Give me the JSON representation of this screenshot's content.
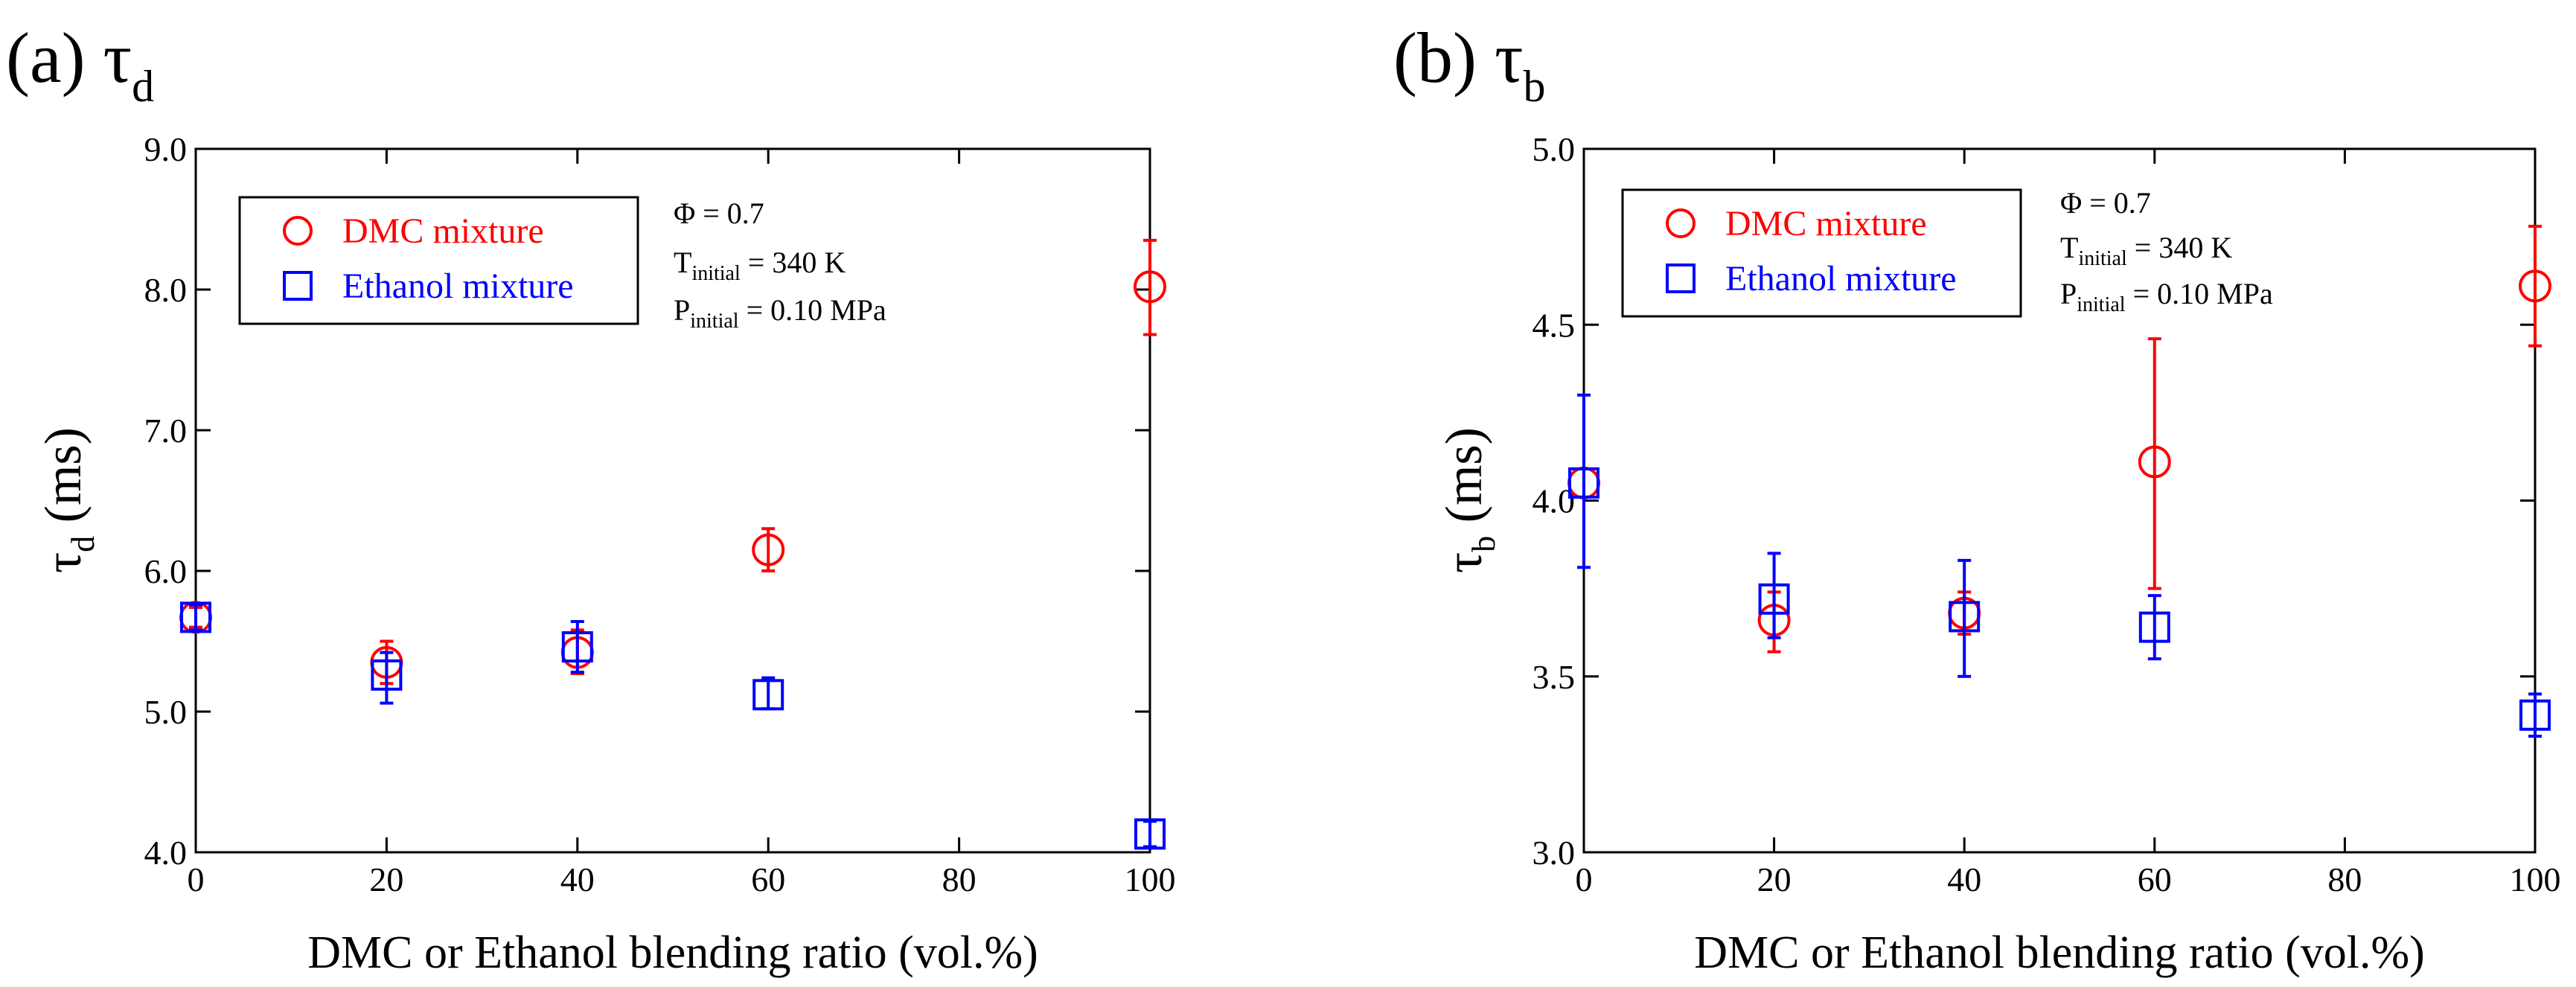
{
  "chart_data": [
    {
      "type": "scatter",
      "panel": "(a)",
      "title": "τ",
      "title_sub": "d",
      "ylabel": "τ",
      "ylabel_sub": "d",
      "ylabel_unit": "(ms)",
      "xlabel": "DMC or Ethanol blending ratio (vol.%)",
      "xlim": [
        0,
        100
      ],
      "ylim": [
        4.0,
        9.0
      ],
      "xticks": [
        "0",
        "20",
        "40",
        "60",
        "80",
        "100"
      ],
      "yticks": [
        "4.0",
        "5.0",
        "6.0",
        "7.0",
        "8.0",
        "9.0"
      ],
      "legend": [
        "DMC mixture",
        "Ethanol mixture"
      ],
      "annotations": {
        "phi": "Φ = 0.7",
        "t_main": "T",
        "t_sub": "initial",
        "t_val": " = 340 K",
        "p_main": "P",
        "p_sub": "initial",
        "p_val": " = 0.10 MPa"
      },
      "series": [
        {
          "name": "DMC mixture",
          "marker": "circle",
          "color": "#ff0000",
          "points": [
            {
              "x": 0,
              "y": 5.67,
              "lo": 5.6,
              "hi": 5.74
            },
            {
              "x": 20,
              "y": 5.35,
              "lo": 5.2,
              "hi": 5.5
            },
            {
              "x": 40,
              "y": 5.42,
              "lo": 5.27,
              "hi": 5.58
            },
            {
              "x": 60,
              "y": 6.15,
              "lo": 6.0,
              "hi": 6.3
            },
            {
              "x": 100,
              "y": 8.02,
              "lo": 7.68,
              "hi": 8.35
            }
          ]
        },
        {
          "name": "Ethanol mixture",
          "marker": "square",
          "color": "#0000ff",
          "points": [
            {
              "x": 0,
              "y": 5.67,
              "lo": 5.58,
              "hi": 5.76
            },
            {
              "x": 20,
              "y": 5.26,
              "lo": 5.06,
              "hi": 5.42
            },
            {
              "x": 40,
              "y": 5.46,
              "lo": 5.28,
              "hi": 5.64
            },
            {
              "x": 60,
              "y": 5.12,
              "lo": 5.02,
              "hi": 5.24
            },
            {
              "x": 100,
              "y": 4.13,
              "lo": 4.04,
              "hi": 4.22
            }
          ]
        }
      ]
    },
    {
      "type": "scatter",
      "panel": "(b)",
      "title": "τ",
      "title_sub": "b",
      "ylabel": "τ",
      "ylabel_sub": "b",
      "ylabel_unit": "(ms)",
      "xlabel": "DMC or Ethanol blending ratio (vol.%)",
      "xlim": [
        0,
        100
      ],
      "ylim": [
        3.0,
        5.0
      ],
      "xticks": [
        "0",
        "20",
        "40",
        "60",
        "80",
        "100"
      ],
      "yticks": [
        "3.0",
        "3.5",
        "4.0",
        "4.5",
        "5.0"
      ],
      "legend": [
        "DMC mixture",
        "Ethanol mixture"
      ],
      "annotations": {
        "phi": "Φ = 0.7",
        "t_main": "T",
        "t_sub": "initial",
        "t_val": " = 340 K",
        "p_main": "P",
        "p_sub": "initial",
        "p_val": " = 0.10 MPa"
      },
      "series": [
        {
          "name": "DMC mixture",
          "marker": "circle",
          "color": "#ff0000",
          "points": [
            {
              "x": 0,
              "y": 4.05,
              "lo": 4.01,
              "hi": 4.09
            },
            {
              "x": 20,
              "y": 3.66,
              "lo": 3.57,
              "hi": 3.74
            },
            {
              "x": 40,
              "y": 3.68,
              "lo": 3.62,
              "hi": 3.74
            },
            {
              "x": 60,
              "y": 4.11,
              "lo": 3.75,
              "hi": 4.46
            },
            {
              "x": 100,
              "y": 4.61,
              "lo": 4.44,
              "hi": 4.78
            }
          ]
        },
        {
          "name": "Ethanol mixture",
          "marker": "square",
          "color": "#0000ff",
          "points": [
            {
              "x": 0,
              "y": 4.05,
              "lo": 3.81,
              "hi": 4.3
            },
            {
              "x": 20,
              "y": 3.72,
              "lo": 3.61,
              "hi": 3.85
            },
            {
              "x": 40,
              "y": 3.67,
              "lo": 3.5,
              "hi": 3.83
            },
            {
              "x": 60,
              "y": 3.64,
              "lo": 3.55,
              "hi": 3.73
            },
            {
              "x": 100,
              "y": 3.39,
              "lo": 3.33,
              "hi": 3.45
            }
          ]
        }
      ]
    }
  ]
}
